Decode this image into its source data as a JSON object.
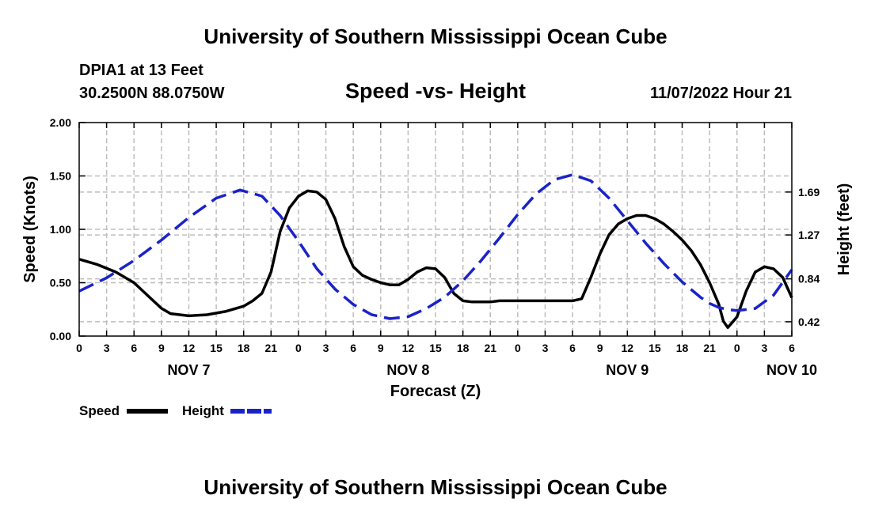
{
  "header": {
    "title": "University of Southern Mississippi Ocean Cube",
    "footer_title": "University of Southern Mississippi Ocean Cube",
    "station": "DPIA1 at 13 Feet",
    "coords": "30.2500N  88.0750W",
    "plot_title": "Speed -vs- Height",
    "timestamp": "11/07/2022 Hour 21"
  },
  "chart_data": {
    "type": "line",
    "xlabel": "Forecast (Z)",
    "ylabel": "Speed (Knots)",
    "y2label": "Height (feet)",
    "xlim": [
      0,
      78
    ],
    "ylim": [
      0,
      2
    ],
    "y2lim": [
      0.28,
      2.37
    ],
    "x_ticks": [
      0,
      3,
      6,
      9,
      12,
      15,
      18,
      21,
      24,
      27,
      30,
      33,
      36,
      39,
      42,
      45,
      48,
      51,
      54,
      57,
      60,
      63,
      66,
      69,
      72,
      75,
      78
    ],
    "x_tick_labels": [
      "0",
      "3",
      "6",
      "9",
      "12",
      "15",
      "18",
      "21",
      "0",
      "3",
      "6",
      "9",
      "12",
      "15",
      "18",
      "21",
      "0",
      "3",
      "6",
      "9",
      "12",
      "15",
      "18",
      "21",
      "0",
      "3",
      "6"
    ],
    "y_ticks": [
      0,
      0.5,
      1,
      1.5,
      2
    ],
    "y_tick_labels": [
      "0.00",
      "0.50",
      "1.00",
      "1.50",
      "2.00"
    ],
    "y2_ticks": [
      0.42,
      0.84,
      1.27,
      1.69
    ],
    "y2_tick_labels": [
      "0.42",
      "0.84",
      "1.27",
      "1.69"
    ],
    "date_labels": [
      {
        "x": 12,
        "label": "NOV 7"
      },
      {
        "x": 36,
        "label": "NOV 8"
      },
      {
        "x": 60,
        "label": "NOV 9"
      },
      {
        "x": 78,
        "label": "NOV 10"
      }
    ],
    "grid": true,
    "series": [
      {
        "name": "Speed",
        "axis": "left",
        "color": "#000000",
        "dash": "solid",
        "x": [
          0,
          2,
          4,
          6,
          8,
          9,
          10,
          12,
          14,
          16,
          18,
          19,
          20,
          21,
          22,
          23,
          24,
          25,
          26,
          27,
          28,
          29,
          30,
          31,
          32,
          33,
          34,
          35,
          36,
          37,
          38,
          39,
          40,
          41,
          42,
          43,
          44,
          45,
          46,
          48,
          50,
          52,
          54,
          55,
          56,
          57,
          58,
          59,
          60,
          61,
          62,
          63,
          64,
          65,
          66,
          67,
          68,
          69,
          70,
          70.5,
          71,
          72,
          73,
          74,
          75,
          76,
          77,
          78
        ],
        "y": [
          0.72,
          0.67,
          0.6,
          0.5,
          0.34,
          0.26,
          0.21,
          0.19,
          0.2,
          0.23,
          0.28,
          0.33,
          0.4,
          0.6,
          0.98,
          1.2,
          1.31,
          1.36,
          1.35,
          1.28,
          1.1,
          0.84,
          0.65,
          0.57,
          0.53,
          0.5,
          0.48,
          0.48,
          0.53,
          0.6,
          0.64,
          0.63,
          0.55,
          0.4,
          0.33,
          0.32,
          0.32,
          0.32,
          0.33,
          0.33,
          0.33,
          0.33,
          0.33,
          0.35,
          0.55,
          0.77,
          0.95,
          1.05,
          1.1,
          1.13,
          1.13,
          1.1,
          1.05,
          0.98,
          0.9,
          0.8,
          0.67,
          0.5,
          0.3,
          0.14,
          0.08,
          0.18,
          0.42,
          0.6,
          0.65,
          0.63,
          0.55,
          0.36
        ]
      },
      {
        "name": "Height",
        "axis": "right",
        "color": "#1a23c8",
        "dash": "dashed",
        "x": [
          0,
          3,
          6,
          9,
          12,
          15,
          17.6,
          20,
          22,
          24,
          26,
          28,
          30,
          32,
          34,
          36,
          38,
          40,
          42,
          44,
          46,
          48,
          50,
          52,
          54,
          56,
          58,
          60,
          62,
          64,
          66,
          68,
          69,
          70,
          71,
          72,
          74,
          76,
          78
        ],
        "y": [
          0.72,
          0.85,
          1.02,
          1.22,
          1.44,
          1.63,
          1.71,
          1.65,
          1.46,
          1.21,
          0.94,
          0.74,
          0.59,
          0.49,
          0.45,
          0.47,
          0.55,
          0.66,
          0.82,
          1.02,
          1.24,
          1.47,
          1.67,
          1.81,
          1.86,
          1.8,
          1.63,
          1.41,
          1.19,
          0.99,
          0.81,
          0.66,
          0.6,
          0.56,
          0.54,
          0.53,
          0.55,
          0.68,
          0.93
        ]
      }
    ],
    "legend": [
      {
        "label": "Speed",
        "color": "#000000",
        "dash": "solid"
      },
      {
        "label": "Height",
        "color": "#1a23c8",
        "dash": "dashed"
      }
    ]
  }
}
